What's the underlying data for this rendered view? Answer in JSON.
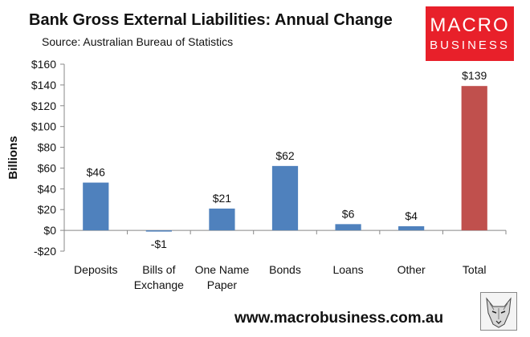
{
  "title": "Bank Gross External Liabilities: Annual Change",
  "subtitle": "Source: Australian Bureau of Statistics",
  "logo": {
    "line1": "MACRO",
    "line2": "BUSINESS"
  },
  "footer_url": "www.macrobusiness.com.au",
  "colors": {
    "bar": "#4f81bd",
    "total_bar": "#c0504d",
    "logo_bg": "#e8202a"
  },
  "chart_data": {
    "type": "bar",
    "categories": [
      [
        "Deposits"
      ],
      [
        "Bills of",
        "Exchange"
      ],
      [
        "One Name",
        "Paper"
      ],
      [
        "Bonds"
      ],
      [
        "Loans"
      ],
      [
        "Other"
      ],
      [
        "Total"
      ]
    ],
    "values": [
      46,
      -1,
      21,
      62,
      6,
      4,
      139
    ],
    "data_labels": [
      "$46",
      "-$1",
      "$21",
      "$62",
      "$6",
      "$4",
      "$139"
    ],
    "ylabel": "Billions",
    "ylim": [
      -20,
      160
    ],
    "yticks": [
      -20,
      0,
      20,
      40,
      60,
      80,
      100,
      120,
      140,
      160
    ],
    "ytick_labels": [
      "-$20",
      "$0",
      "$20",
      "$40",
      "$60",
      "$80",
      "$100",
      "$120",
      "$140",
      "$160"
    ],
    "grid": false,
    "highlight_index": 6
  }
}
